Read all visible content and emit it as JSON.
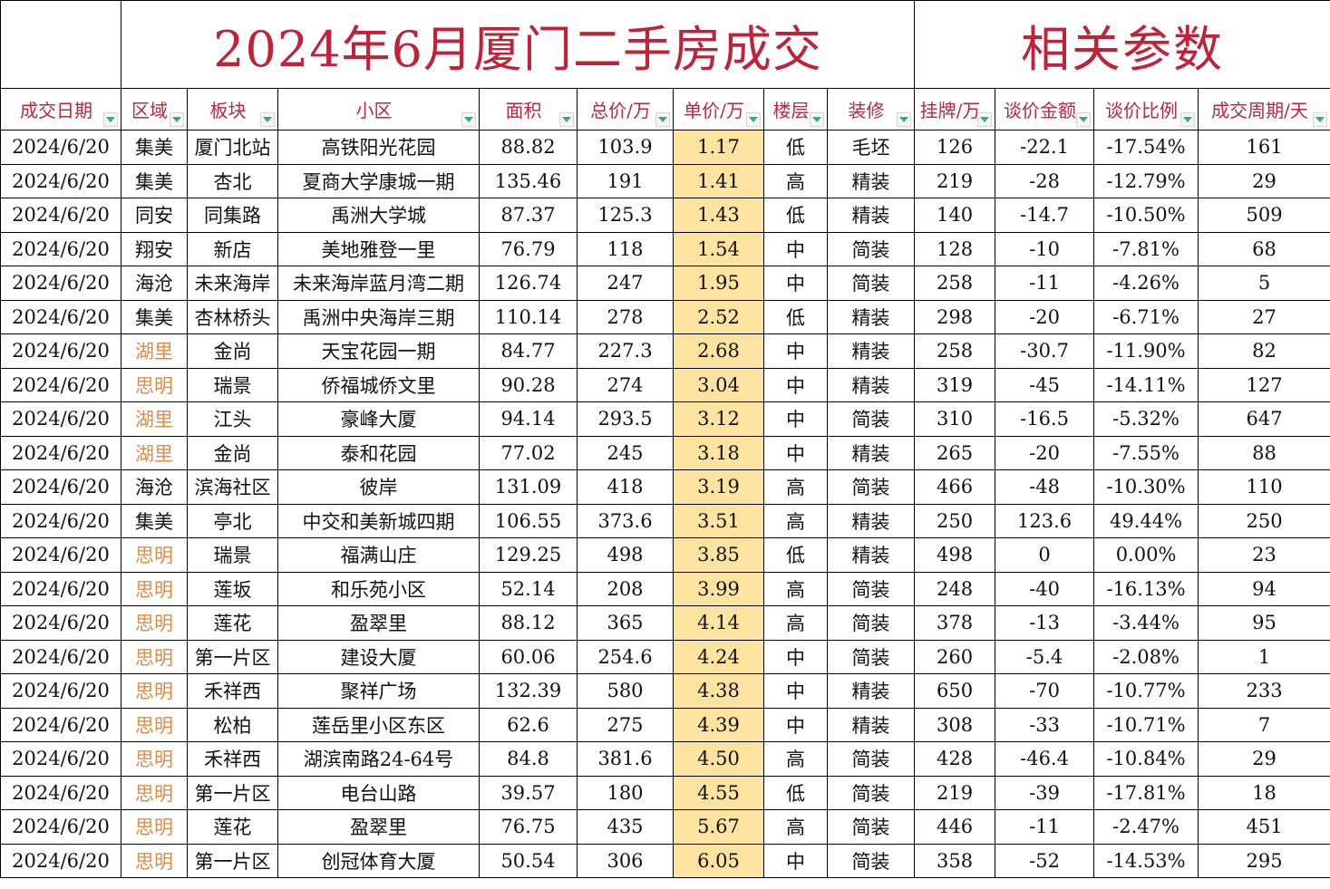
{
  "title": {
    "main": "2024年6月厦门二手房成交",
    "side": "相关参数"
  },
  "colors": {
    "title_red": "#c0223a",
    "header_red": "#b52a3c",
    "highlight_region": "#e08c48",
    "unit_price_fill": "#fde3a0",
    "filter_arrow": "#2fae7a"
  },
  "columns": [
    {
      "key": "date",
      "label": "成交日期"
    },
    {
      "key": "region",
      "label": "区域"
    },
    {
      "key": "block",
      "label": "板块"
    },
    {
      "key": "community",
      "label": "小区"
    },
    {
      "key": "area",
      "label": "面积"
    },
    {
      "key": "total",
      "label": "总价/万"
    },
    {
      "key": "unit",
      "label": "单价/万"
    },
    {
      "key": "floor",
      "label": "楼层"
    },
    {
      "key": "deco",
      "label": "装修"
    },
    {
      "key": "listing",
      "label": "挂牌/万"
    },
    {
      "key": "nego_amt",
      "label": "谈价金额"
    },
    {
      "key": "nego_pct",
      "label": "谈价比例"
    },
    {
      "key": "cycle",
      "label": "成交周期/天"
    }
  ],
  "rows": [
    {
      "date": "2024/6/20",
      "region": "集美",
      "hl": false,
      "block": "厦门北站",
      "community": "高铁阳光花园",
      "area": "88.82",
      "total": "103.9",
      "unit": "1.17",
      "floor": "低",
      "deco": "毛坯",
      "listing": "126",
      "nego_amt": "-22.1",
      "nego_pct": "-17.54%",
      "cycle": "161"
    },
    {
      "date": "2024/6/20",
      "region": "集美",
      "hl": false,
      "block": "杏北",
      "community": "夏商大学康城一期",
      "area": "135.46",
      "total": "191",
      "unit": "1.41",
      "floor": "高",
      "deco": "精装",
      "listing": "219",
      "nego_amt": "-28",
      "nego_pct": "-12.79%",
      "cycle": "29"
    },
    {
      "date": "2024/6/20",
      "region": "同安",
      "hl": false,
      "block": "同集路",
      "community": "禹洲大学城",
      "area": "87.37",
      "total": "125.3",
      "unit": "1.43",
      "floor": "低",
      "deco": "精装",
      "listing": "140",
      "nego_amt": "-14.7",
      "nego_pct": "-10.50%",
      "cycle": "509"
    },
    {
      "date": "2024/6/20",
      "region": "翔安",
      "hl": false,
      "block": "新店",
      "community": "美地雅登一里",
      "area": "76.79",
      "total": "118",
      "unit": "1.54",
      "floor": "中",
      "deco": "简装",
      "listing": "128",
      "nego_amt": "-10",
      "nego_pct": "-7.81%",
      "cycle": "68"
    },
    {
      "date": "2024/6/20",
      "region": "海沧",
      "hl": false,
      "block": "未来海岸",
      "community": "未来海岸蓝月湾二期",
      "area": "126.74",
      "total": "247",
      "unit": "1.95",
      "floor": "中",
      "deco": "简装",
      "listing": "258",
      "nego_amt": "-11",
      "nego_pct": "-4.26%",
      "cycle": "5"
    },
    {
      "date": "2024/6/20",
      "region": "集美",
      "hl": false,
      "block": "杏林桥头",
      "community": "禹洲中央海岸三期",
      "area": "110.14",
      "total": "278",
      "unit": "2.52",
      "floor": "低",
      "deco": "精装",
      "listing": "298",
      "nego_amt": "-20",
      "nego_pct": "-6.71%",
      "cycle": "27"
    },
    {
      "date": "2024/6/20",
      "region": "湖里",
      "hl": true,
      "block": "金尚",
      "community": "天宝花园一期",
      "area": "84.77",
      "total": "227.3",
      "unit": "2.68",
      "floor": "中",
      "deco": "精装",
      "listing": "258",
      "nego_amt": "-30.7",
      "nego_pct": "-11.90%",
      "cycle": "82"
    },
    {
      "date": "2024/6/20",
      "region": "思明",
      "hl": true,
      "block": "瑞景",
      "community": "侨福城侨文里",
      "area": "90.28",
      "total": "274",
      "unit": "3.04",
      "floor": "中",
      "deco": "精装",
      "listing": "319",
      "nego_amt": "-45",
      "nego_pct": "-14.11%",
      "cycle": "127"
    },
    {
      "date": "2024/6/20",
      "region": "湖里",
      "hl": true,
      "block": "江头",
      "community": "豪峰大厦",
      "area": "94.14",
      "total": "293.5",
      "unit": "3.12",
      "floor": "中",
      "deco": "简装",
      "listing": "310",
      "nego_amt": "-16.5",
      "nego_pct": "-5.32%",
      "cycle": "647"
    },
    {
      "date": "2024/6/20",
      "region": "湖里",
      "hl": true,
      "block": "金尚",
      "community": "泰和花园",
      "area": "77.02",
      "total": "245",
      "unit": "3.18",
      "floor": "中",
      "deco": "精装",
      "listing": "265",
      "nego_amt": "-20",
      "nego_pct": "-7.55%",
      "cycle": "88"
    },
    {
      "date": "2024/6/20",
      "region": "海沧",
      "hl": false,
      "block": "滨海社区",
      "community": "彼岸",
      "area": "131.09",
      "total": "418",
      "unit": "3.19",
      "floor": "高",
      "deco": "简装",
      "listing": "466",
      "nego_amt": "-48",
      "nego_pct": "-10.30%",
      "cycle": "110"
    },
    {
      "date": "2024/6/20",
      "region": "集美",
      "hl": false,
      "block": "亭北",
      "community": "中交和美新城四期",
      "area": "106.55",
      "total": "373.6",
      "unit": "3.51",
      "floor": "高",
      "deco": "精装",
      "listing": "250",
      "nego_amt": "123.6",
      "nego_pct": "49.44%",
      "cycle": "250"
    },
    {
      "date": "2024/6/20",
      "region": "思明",
      "hl": true,
      "block": "瑞景",
      "community": "福满山庄",
      "area": "129.25",
      "total": "498",
      "unit": "3.85",
      "floor": "低",
      "deco": "精装",
      "listing": "498",
      "nego_amt": "0",
      "nego_pct": "0.00%",
      "cycle": "23"
    },
    {
      "date": "2024/6/20",
      "region": "思明",
      "hl": true,
      "block": "莲坂",
      "community": "和乐苑小区",
      "area": "52.14",
      "total": "208",
      "unit": "3.99",
      "floor": "高",
      "deco": "简装",
      "listing": "248",
      "nego_amt": "-40",
      "nego_pct": "-16.13%",
      "cycle": "94"
    },
    {
      "date": "2024/6/20",
      "region": "思明",
      "hl": true,
      "block": "莲花",
      "community": "盈翠里",
      "area": "88.12",
      "total": "365",
      "unit": "4.14",
      "floor": "高",
      "deco": "简装",
      "listing": "378",
      "nego_amt": "-13",
      "nego_pct": "-3.44%",
      "cycle": "95"
    },
    {
      "date": "2024/6/20",
      "region": "思明",
      "hl": true,
      "block": "第一片区",
      "community": "建设大厦",
      "area": "60.06",
      "total": "254.6",
      "unit": "4.24",
      "floor": "中",
      "deco": "简装",
      "listing": "260",
      "nego_amt": "-5.4",
      "nego_pct": "-2.08%",
      "cycle": "1"
    },
    {
      "date": "2024/6/20",
      "region": "思明",
      "hl": true,
      "block": "禾祥西",
      "community": "聚祥广场",
      "area": "132.39",
      "total": "580",
      "unit": "4.38",
      "floor": "中",
      "deco": "精装",
      "listing": "650",
      "nego_amt": "-70",
      "nego_pct": "-10.77%",
      "cycle": "233"
    },
    {
      "date": "2024/6/20",
      "region": "思明",
      "hl": true,
      "block": "松柏",
      "community": "莲岳里小区东区",
      "area": "62.6",
      "total": "275",
      "unit": "4.39",
      "floor": "中",
      "deco": "精装",
      "listing": "308",
      "nego_amt": "-33",
      "nego_pct": "-10.71%",
      "cycle": "7"
    },
    {
      "date": "2024/6/20",
      "region": "思明",
      "hl": true,
      "block": "禾祥西",
      "community": "湖滨南路24-64号",
      "area": "84.8",
      "total": "381.6",
      "unit": "4.50",
      "floor": "高",
      "deco": "简装",
      "listing": "428",
      "nego_amt": "-46.4",
      "nego_pct": "-10.84%",
      "cycle": "29"
    },
    {
      "date": "2024/6/20",
      "region": "思明",
      "hl": true,
      "block": "第一片区",
      "community": "电台山路",
      "area": "39.57",
      "total": "180",
      "unit": "4.55",
      "floor": "低",
      "deco": "简装",
      "listing": "219",
      "nego_amt": "-39",
      "nego_pct": "-17.81%",
      "cycle": "18"
    },
    {
      "date": "2024/6/20",
      "region": "思明",
      "hl": true,
      "block": "莲花",
      "community": "盈翠里",
      "area": "76.75",
      "total": "435",
      "unit": "5.67",
      "floor": "高",
      "deco": "简装",
      "listing": "446",
      "nego_amt": "-11",
      "nego_pct": "-2.47%",
      "cycle": "451"
    },
    {
      "date": "2024/6/20",
      "region": "思明",
      "hl": true,
      "block": "第一片区",
      "community": "创冠体育大厦",
      "area": "50.54",
      "total": "306",
      "unit": "6.05",
      "floor": "中",
      "deco": "简装",
      "listing": "358",
      "nego_amt": "-52",
      "nego_pct": "-14.53%",
      "cycle": "295"
    }
  ]
}
